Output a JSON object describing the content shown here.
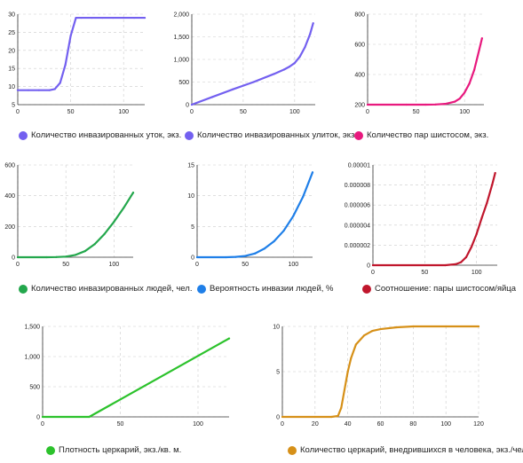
{
  "chart_data": [
    {
      "type": "line",
      "series": [
        {
          "name": "Количество инвазированных уток, экз.",
          "color": "#7360f0"
        }
      ],
      "x": [
        0,
        10,
        20,
        30,
        35,
        40,
        45,
        50,
        55,
        60,
        70,
        80,
        90,
        100,
        110,
        120
      ],
      "values": [
        9,
        9,
        9,
        9,
        9.3,
        11,
        16,
        24,
        29,
        29,
        29,
        29,
        29,
        29,
        29,
        29
      ],
      "xlim": [
        0,
        120
      ],
      "ylim": [
        5,
        30
      ],
      "xticks": [
        0,
        50,
        100
      ],
      "yticks": [
        5,
        10,
        15,
        20,
        25,
        30
      ],
      "ytick_labels": [
        "5",
        "10",
        "15",
        "20",
        "25",
        "30"
      ],
      "grid": true,
      "legend": "below"
    },
    {
      "type": "line",
      "series": [
        {
          "name": "Количество инвазированных улиток, экз.",
          "color": "#7360f0"
        }
      ],
      "x": [
        0,
        20,
        40,
        60,
        80,
        90,
        95,
        100,
        105,
        110,
        115,
        118
      ],
      "values": [
        0,
        170,
        340,
        500,
        680,
        780,
        840,
        920,
        1060,
        1270,
        1560,
        1800
      ],
      "xlim": [
        0,
        120
      ],
      "ylim": [
        0,
        2000
      ],
      "xticks": [
        0,
        50,
        100
      ],
      "yticks": [
        0,
        500,
        1000,
        1500,
        2000
      ],
      "ytick_labels": [
        "0",
        "500",
        "1,000",
        "1,500",
        "2,000"
      ],
      "grid": true,
      "legend": "below"
    },
    {
      "type": "line",
      "series": [
        {
          "name": "Количество пар шистосом, экз.",
          "color": "#e8197e"
        }
      ],
      "x": [
        0,
        40,
        60,
        70,
        80,
        90,
        95,
        100,
        105,
        110,
        115,
        118
      ],
      "values": [
        200,
        200,
        200,
        201,
        205,
        220,
        240,
        280,
        340,
        430,
        560,
        640
      ],
      "xlim": [
        0,
        120
      ],
      "ylim": [
        200,
        800
      ],
      "xticks": [
        0,
        50,
        100
      ],
      "yticks": [
        200,
        400,
        600,
        800
      ],
      "ytick_labels": [
        "200",
        "400",
        "600",
        "800"
      ],
      "grid": true,
      "legend": "below"
    },
    {
      "type": "line",
      "series": [
        {
          "name": "Количество инвазированных людей, чел.",
          "color": "#23a74c"
        }
      ],
      "x": [
        0,
        30,
        40,
        50,
        60,
        70,
        80,
        90,
        100,
        110,
        120
      ],
      "values": [
        0,
        0,
        1,
        4,
        15,
        40,
        85,
        150,
        230,
        320,
        420
      ],
      "xlim": [
        0,
        120
      ],
      "ylim": [
        0,
        600
      ],
      "xticks": [
        0,
        50,
        100
      ],
      "yticks": [
        0,
        200,
        400,
        600
      ],
      "ytick_labels": [
        "0",
        "200",
        "400",
        "600"
      ],
      "grid": true,
      "legend": "below"
    },
    {
      "type": "line",
      "series": [
        {
          "name": "Вероятность инвазии людей, %",
          "color": "#1f7fe8"
        }
      ],
      "x": [
        0,
        30,
        40,
        50,
        60,
        70,
        80,
        90,
        100,
        110,
        120
      ],
      "values": [
        0,
        0,
        0.05,
        0.2,
        0.6,
        1.4,
        2.6,
        4.3,
        6.7,
        9.8,
        13.8
      ],
      "xlim": [
        0,
        120
      ],
      "ylim": [
        0,
        15
      ],
      "xticks": [
        0,
        50,
        100
      ],
      "yticks": [
        0,
        5,
        10,
        15
      ],
      "ytick_labels": [
        "0",
        "5",
        "10",
        "15"
      ],
      "grid": true,
      "legend": "below"
    },
    {
      "type": "line",
      "series": [
        {
          "name": "Соотношение: пары шистосом/яйца",
          "color": "#c0162c"
        }
      ],
      "x": [
        0,
        70,
        80,
        85,
        90,
        95,
        100,
        105,
        110,
        115,
        118
      ],
      "values": [
        0,
        0,
        1e-07,
        3e-07,
        8e-07,
        1.8e-06,
        3.1e-06,
        4.7e-06,
        6.2e-06,
        8e-06,
        9.2e-06
      ],
      "xlim": [
        0,
        120
      ],
      "ylim": [
        0,
        1e-05
      ],
      "xticks": [
        0,
        50,
        100
      ],
      "yticks": [
        0,
        2e-06,
        4e-06,
        6e-06,
        8e-06,
        1e-05
      ],
      "ytick_labels": [
        "0",
        "0.000002",
        "0.000004",
        "0.000006",
        "0.000008",
        "0.00001"
      ],
      "grid": true,
      "legend": "below"
    },
    {
      "type": "line",
      "series": [
        {
          "name": "Плотность церкарий, экз./кв. м.",
          "color": "#2cc22c"
        }
      ],
      "x": [
        0,
        30,
        120
      ],
      "values": [
        0,
        0,
        1300
      ],
      "xlim": [
        0,
        120
      ],
      "ylim": [
        0,
        1500
      ],
      "xticks": [
        0,
        50,
        100
      ],
      "yticks": [
        0,
        500,
        1000,
        1500
      ],
      "ytick_labels": [
        "0",
        "500",
        "1,000",
        "1,500"
      ],
      "grid": true,
      "legend": "below"
    },
    {
      "type": "line",
      "series": [
        {
          "name": "Количество церкарий, внедрившихся в человека, экз./чел.",
          "color": "#d69018"
        }
      ],
      "x": [
        0,
        20,
        30,
        34,
        36,
        38,
        40,
        42,
        45,
        50,
        55,
        60,
        70,
        80,
        100,
        120
      ],
      "values": [
        0,
        0,
        0,
        0.1,
        1.0,
        3.0,
        5.0,
        6.5,
        8.0,
        9.0,
        9.5,
        9.7,
        9.9,
        10,
        10,
        10
      ],
      "xlim": [
        0,
        120
      ],
      "ylim": [
        0,
        10
      ],
      "xticks": [
        0,
        20,
        40,
        60,
        80,
        100,
        120
      ],
      "yticks": [
        0,
        5,
        10
      ],
      "ytick_labels": [
        "0",
        "5",
        "10"
      ],
      "grid": true,
      "legend": "below"
    }
  ]
}
